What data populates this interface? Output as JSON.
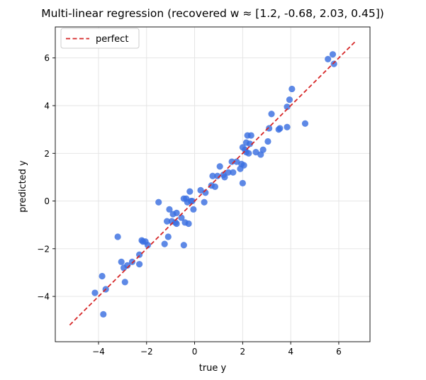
{
  "chart_data": {
    "type": "scatter",
    "title": "Multi-linear regression  (recovered w ≈ [1.2, -0.68, 2.03, 0.45])",
    "xlabel": "true y",
    "ylabel": "predicted y",
    "xlim": [
      -5.8,
      7.3
    ],
    "ylim": [
      -5.9,
      7.3
    ],
    "xticks": [
      -4,
      -2,
      0,
      2,
      4,
      6
    ],
    "yticks": [
      -4,
      -2,
      0,
      2,
      4,
      6
    ],
    "xtick_labels": [
      "−4",
      "−2",
      "0",
      "2",
      "4",
      "6"
    ],
    "ytick_labels": [
      "−4",
      "−2",
      "0",
      "2",
      "4",
      "6"
    ],
    "grid": true,
    "legend_position": "top-left",
    "colors": {
      "points": "#3b6fe0",
      "reference_line": "#d62728"
    },
    "reference_line": {
      "name": "perfect",
      "x": [
        -5.2,
        6.7
      ],
      "y": [
        -5.2,
        6.7
      ]
    },
    "points": [
      {
        "x": -4.15,
        "y": -3.85
      },
      {
        "x": -3.85,
        "y": -3.15
      },
      {
        "x": -3.8,
        "y": -4.75
      },
      {
        "x": -3.7,
        "y": -3.7
      },
      {
        "x": -3.2,
        "y": -1.5
      },
      {
        "x": -3.05,
        "y": -2.55
      },
      {
        "x": -2.95,
        "y": -2.8
      },
      {
        "x": -2.9,
        "y": -3.4
      },
      {
        "x": -2.8,
        "y": -2.7
      },
      {
        "x": -2.6,
        "y": -2.55
      },
      {
        "x": -2.3,
        "y": -2.65
      },
      {
        "x": -2.3,
        "y": -2.25
      },
      {
        "x": -2.2,
        "y": -1.65
      },
      {
        "x": -2.15,
        "y": -1.7
      },
      {
        "x": -2.05,
        "y": -1.7
      },
      {
        "x": -1.95,
        "y": -1.85
      },
      {
        "x": -1.5,
        "y": -0.05
      },
      {
        "x": -1.25,
        "y": -1.8
      },
      {
        "x": -1.15,
        "y": -0.85
      },
      {
        "x": -1.1,
        "y": -1.5
      },
      {
        "x": -1.05,
        "y": -0.35
      },
      {
        "x": -0.95,
        "y": -0.85
      },
      {
        "x": -0.9,
        "y": -0.55
      },
      {
        "x": -0.8,
        "y": -0.9
      },
      {
        "x": -0.75,
        "y": -0.95
      },
      {
        "x": -0.75,
        "y": -0.5
      },
      {
        "x": -0.55,
        "y": -0.7
      },
      {
        "x": -0.45,
        "y": 0.1
      },
      {
        "x": -0.45,
        "y": -1.85
      },
      {
        "x": -0.4,
        "y": -0.9
      },
      {
        "x": -0.35,
        "y": 0.1
      },
      {
        "x": -0.3,
        "y": -0.05
      },
      {
        "x": -0.25,
        "y": -0.95
      },
      {
        "x": -0.2,
        "y": 0.4
      },
      {
        "x": -0.15,
        "y": 0.0
      },
      {
        "x": -0.1,
        "y": 0.0
      },
      {
        "x": -0.05,
        "y": -0.35
      },
      {
        "x": 0.25,
        "y": 0.45
      },
      {
        "x": 0.4,
        "y": -0.05
      },
      {
        "x": 0.45,
        "y": 0.35
      },
      {
        "x": 0.7,
        "y": 0.65
      },
      {
        "x": 0.75,
        "y": 1.05
      },
      {
        "x": 0.85,
        "y": 0.6
      },
      {
        "x": 0.95,
        "y": 1.05
      },
      {
        "x": 1.05,
        "y": 1.45
      },
      {
        "x": 1.2,
        "y": 1.1
      },
      {
        "x": 1.25,
        "y": 1.0
      },
      {
        "x": 1.4,
        "y": 1.2
      },
      {
        "x": 1.55,
        "y": 1.65
      },
      {
        "x": 1.6,
        "y": 1.2
      },
      {
        "x": 1.75,
        "y": 1.65
      },
      {
        "x": 1.9,
        "y": 1.35
      },
      {
        "x": 1.95,
        "y": 1.55
      },
      {
        "x": 2.0,
        "y": 0.75
      },
      {
        "x": 2.0,
        "y": 2.25
      },
      {
        "x": 2.05,
        "y": 1.5
      },
      {
        "x": 2.1,
        "y": 2.15
      },
      {
        "x": 2.15,
        "y": 2.05
      },
      {
        "x": 2.15,
        "y": 2.45
      },
      {
        "x": 2.2,
        "y": 2.75
      },
      {
        "x": 2.25,
        "y": 2.0
      },
      {
        "x": 2.3,
        "y": 2.4
      },
      {
        "x": 2.35,
        "y": 2.75
      },
      {
        "x": 2.55,
        "y": 2.05
      },
      {
        "x": 2.75,
        "y": 1.95
      },
      {
        "x": 2.85,
        "y": 2.15
      },
      {
        "x": 3.05,
        "y": 2.5
      },
      {
        "x": 3.1,
        "y": 3.05
      },
      {
        "x": 3.2,
        "y": 3.65
      },
      {
        "x": 3.5,
        "y": 3.0
      },
      {
        "x": 3.55,
        "y": 3.05
      },
      {
        "x": 3.85,
        "y": 3.1
      },
      {
        "x": 3.85,
        "y": 3.95
      },
      {
        "x": 3.95,
        "y": 4.25
      },
      {
        "x": 4.05,
        "y": 4.7
      },
      {
        "x": 4.6,
        "y": 3.25
      },
      {
        "x": 5.55,
        "y": 5.95
      },
      {
        "x": 5.75,
        "y": 6.15
      },
      {
        "x": 5.8,
        "y": 5.75
      }
    ]
  }
}
